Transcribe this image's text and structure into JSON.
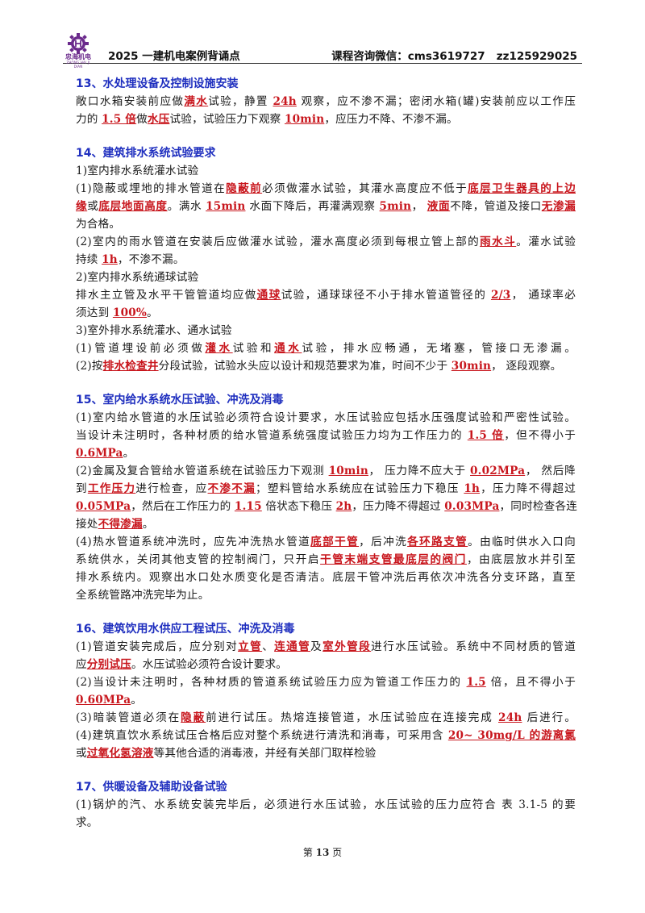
{
  "header": {
    "logo_text": "忠海机电",
    "logo_sub": "ZHONG HAI JI DIAN",
    "title": "2025 一建机电案例背诵点",
    "contact": "课程咨询微信：cms3619727   zz125929025"
  },
  "colors": {
    "section_title": "#1f2fbf",
    "highlight": "#c8161d",
    "logo": "#6b2a8c"
  },
  "sections": [
    {
      "title": "13、水处理设备及控制设施安装",
      "lines": [
        [
          {
            "t": "敞口水箱安装前应做"
          },
          {
            "t": "满水",
            "h": true
          },
          {
            "t": "试验，静置 "
          },
          {
            "t": "24h",
            "h": true
          },
          {
            "t": " 观察，应不渗不漏；密闭水箱(罐)安装前应以工作压"
          }
        ],
        [
          {
            "t": "力的 "
          },
          {
            "t": "1.5 倍",
            "h": true
          },
          {
            "t": "做"
          },
          {
            "t": "水压",
            "h": true
          },
          {
            "t": "试验，试验压力下观察 "
          },
          {
            "t": "10min",
            "h": true
          },
          {
            "t": "，应压力不降、不渗不漏。"
          }
        ]
      ]
    },
    {
      "title": "14、建筑排水系统试验要求",
      "lines": [
        [
          {
            "t": "1)室内排水系统灌水试验"
          }
        ],
        [
          {
            "t": "(1)隐蔽或埋地的排水管道在"
          },
          {
            "t": "隐蔽前",
            "h": true
          },
          {
            "t": "必须做灌水试验，其灌水高度应不低于"
          },
          {
            "t": "底层卫生器具的上边",
            "h": true
          }
        ],
        [
          {
            "t": "缘",
            "h": true
          },
          {
            "t": "或"
          },
          {
            "t": "底层地面高度",
            "h": true
          },
          {
            "t": "。满水 "
          },
          {
            "t": "15min",
            "h": true
          },
          {
            "t": " 水面下降后，再灌满观察 "
          },
          {
            "t": "5min",
            "h": true
          },
          {
            "t": "， "
          },
          {
            "t": "液面",
            "h": true
          },
          {
            "t": "不降，管道及接口"
          },
          {
            "t": "无渗漏",
            "h": true
          }
        ],
        [
          {
            "t": "为合格。"
          }
        ],
        [
          {
            "t": "(2)室内的雨水管道在安装后应做灌水试验，灌水高度必须到每根立管上部的"
          },
          {
            "t": "雨水斗",
            "h": true
          },
          {
            "t": "。灌水试验"
          }
        ],
        [
          {
            "t": "持续 "
          },
          {
            "t": "1h",
            "h": true
          },
          {
            "t": "，不渗不漏。"
          }
        ],
        [
          {
            "t": "2)室内排水系统通球试验"
          }
        ],
        [
          {
            "t": "排水主立管及水平干管管道均应做"
          },
          {
            "t": "通球",
            "h": true
          },
          {
            "t": "试验，通球球径不小于排水管道管径的 "
          },
          {
            "t": "2/3",
            "h": true
          },
          {
            "t": "， 通球率必"
          }
        ],
        [
          {
            "t": "须达到 "
          },
          {
            "t": "100%",
            "h": true
          },
          {
            "t": "。"
          }
        ],
        [
          {
            "t": "3)室外排水系统灌水、通水试验"
          }
        ],
        [
          {
            "t": "(1)管道埋设前必须做"
          },
          {
            "t": "灌水",
            "h": true
          },
          {
            "t": "试验和"
          },
          {
            "t": "通水",
            "h": true
          },
          {
            "t": "试验，排水应畅通，无堵塞，管接口无渗漏。"
          }
        ],
        [
          {
            "t": "(2)按"
          },
          {
            "t": "排水检查井",
            "h": true
          },
          {
            "t": "分段试验，试验水头应以设计和规范要求为准，时间不少于 "
          },
          {
            "t": "30min",
            "h": true
          },
          {
            "t": "， 逐段观察。"
          }
        ]
      ]
    },
    {
      "title": "15、室内给水系统水压试验、冲洗及消毒",
      "lines": [
        [
          {
            "t": "(1)室内给水管道的水压试验必须符合设计要求，水压试验应包括水压强度试验和严密性试验。"
          }
        ],
        [
          {
            "t": "当设计未注明时，各种材质的给水管道系统强度试验压力均为工作压力的 "
          },
          {
            "t": "1.5 倍",
            "h": true
          },
          {
            "t": "，但不得小于"
          }
        ],
        [
          {
            "t": "0.6MPa",
            "h": true
          },
          {
            "t": "。"
          }
        ],
        [
          {
            "t": "(2)金属及复合管给水管道系统在试验压力下观测 "
          },
          {
            "t": "10min",
            "h": true
          },
          {
            "t": "，  压力降不应大于 "
          },
          {
            "t": " 0.02MPa",
            "h": true
          },
          {
            "t": "，  然后降"
          }
        ],
        [
          {
            "t": "到"
          },
          {
            "t": "工作压力",
            "h": true
          },
          {
            "t": "进行检查，应"
          },
          {
            "t": "不渗不漏",
            "h": true
          },
          {
            "t": "；塑料管给水系统应在试验压力下稳压 "
          },
          {
            "t": "1h",
            "h": true
          },
          {
            "t": "，压力降不得超过"
          }
        ],
        [
          {
            "t": "0.05MPa",
            "h": true
          },
          {
            "t": "，然后在工作压力的 "
          },
          {
            "t": "1.15",
            "h": true
          },
          {
            "t": " 倍状态下稳压 "
          },
          {
            "t": "2h",
            "h": true
          },
          {
            "t": "，压力降不得超过 "
          },
          {
            "t": "0.03MPa",
            "h": true
          },
          {
            "t": "，同时检查各连"
          }
        ],
        [
          {
            "t": "接处"
          },
          {
            "t": "不得渗漏",
            "h": true
          },
          {
            "t": "。"
          }
        ],
        [
          {
            "t": "(4)热水管道系统冲洗时，应先冲洗热水管道"
          },
          {
            "t": "底部干管",
            "h": true
          },
          {
            "t": "，后冲洗"
          },
          {
            "t": "各环路支管",
            "h": true
          },
          {
            "t": "。由临时供水入口向"
          }
        ],
        [
          {
            "t": "系统供水，关闭其他支管的控制阀门，只开启"
          },
          {
            "t": "干管末端支管最底层的阀门",
            "h": true
          },
          {
            "t": "，由底层放水并引至"
          }
        ],
        [
          {
            "t": "排水系统内。观察出水口处水质变化是否清洁。底层干管冲洗后再依次冲洗各分支环路，直至"
          }
        ],
        [
          {
            "t": "全系统管路冲洗完毕为止。"
          }
        ]
      ]
    },
    {
      "title": "16、建筑饮用水供应工程试压、冲洗及消毒",
      "lines": [
        [
          {
            "t": "(1)管道安装完成后，应分别对"
          },
          {
            "t": "立管",
            "h": true
          },
          {
            "t": "、"
          },
          {
            "t": "连通管",
            "h": true
          },
          {
            "t": "及"
          },
          {
            "t": "室外管段",
            "h": true
          },
          {
            "t": "进行水压试验。系统中不同材质的管道"
          }
        ],
        [
          {
            "t": "应"
          },
          {
            "t": "分别试压",
            "h": true
          },
          {
            "t": "。水压试验必须符合设计要求。"
          }
        ],
        [
          {
            "t": "(2)当设计未注明时，各种材质的管道系统试验压力应为管道工作压力的 "
          },
          {
            "t": "1.5",
            "h": true
          },
          {
            "t": " 倍，且不得小于"
          }
        ],
        [
          {
            "t": "0.60MPa",
            "h": true
          },
          {
            "t": "。"
          }
        ],
        [
          {
            "t": "(3)暗装管道必须在"
          },
          {
            "t": "隐蔽",
            "h": true
          },
          {
            "t": "前进行试压。热熔连接管道，水压试验应在连接完成 "
          },
          {
            "t": "24h",
            "h": true
          },
          {
            "t": " 后进行。"
          }
        ],
        [
          {
            "t": "(4)建筑直饮水系统试压合格后应对整个系统进行清洗和消毒，可采用含 "
          },
          {
            "t": "20~ 30mg/L 的游离氯",
            "h": true
          }
        ],
        [
          {
            "t": "或"
          },
          {
            "t": "过氧化氢溶液",
            "h": true
          },
          {
            "t": "等其他合适的消毒液，并经有关部门取样检验"
          }
        ]
      ]
    },
    {
      "title": "17、供暖设备及辅助设备试验",
      "lines": [
        [
          {
            "t": "(1)锅炉的汽、水系统安装完毕后，必须进行水压试验，水压试验的压力应符合 表 3.1-5 的要"
          }
        ],
        [
          {
            "t": "求。"
          }
        ]
      ]
    }
  ],
  "footer": {
    "prefix": "第 ",
    "page": "13",
    "suffix": " 页"
  }
}
